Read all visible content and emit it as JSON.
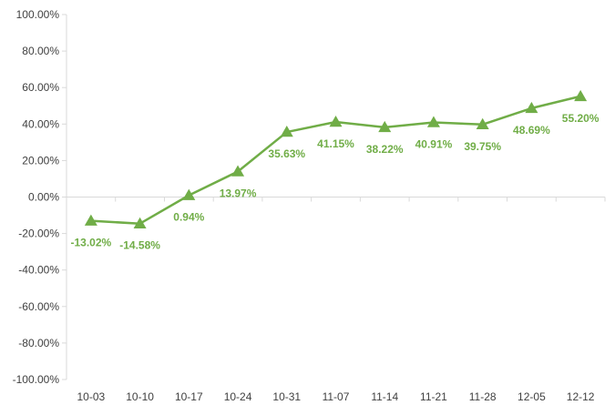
{
  "chart_data": {
    "type": "line",
    "categories": [
      "10-03",
      "10-10",
      "10-17",
      "10-24",
      "10-31",
      "11-07",
      "11-14",
      "11-21",
      "11-28",
      "12-05",
      "12-12"
    ],
    "series": [
      {
        "values": [
          -13.02,
          -14.58,
          0.94,
          13.97,
          35.63,
          41.15,
          38.22,
          40.91,
          39.75,
          48.69,
          55.2
        ],
        "data_labels": [
          "-13.02%",
          "-14.58%",
          "0.94%",
          "13.97%",
          "35.63%",
          "41.15%",
          "38.22%",
          "40.91%",
          "39.75%",
          "48.69%",
          "55.20%"
        ],
        "color": "#70ad47",
        "marker": "triangle"
      }
    ],
    "ylim": [
      -100,
      100
    ],
    "y_ticks": [
      "100.00%",
      "80.00%",
      "60.00%",
      "40.00%",
      "20.00%",
      "0.00%",
      "-20.00%",
      "-40.00%",
      "-60.00%",
      "-80.00%",
      "-100.00%"
    ],
    "y_tick_values": [
      100,
      80,
      60,
      40,
      20,
      0,
      -20,
      -40,
      -60,
      -80,
      -100
    ],
    "title": "",
    "xlabel": "",
    "ylabel": "",
    "grid": false,
    "legend": "none",
    "axis_color": "#d9d9d9",
    "label_color": "#404040"
  }
}
